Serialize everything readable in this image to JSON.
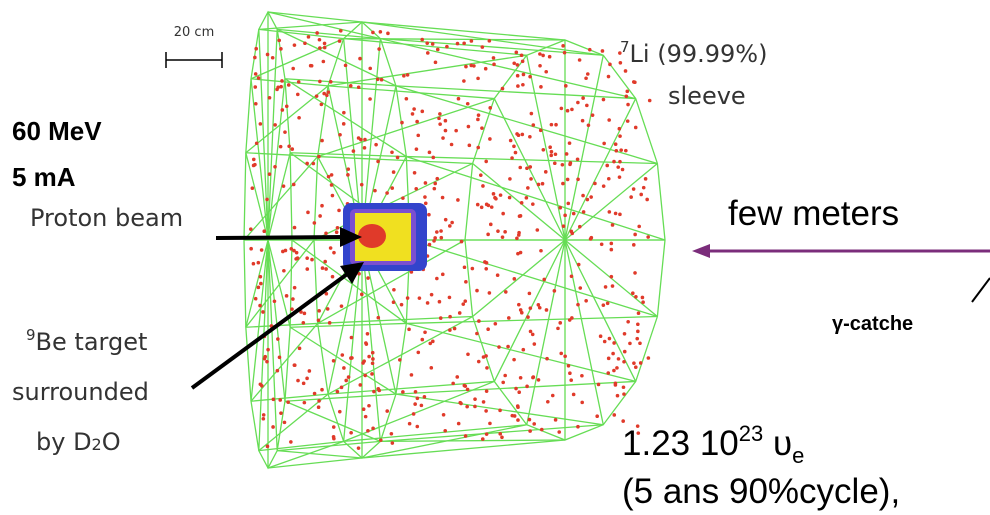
{
  "scale_bar": "20 cm",
  "beam": {
    "energy": "60 MeV",
    "current": "5 mA",
    "label": "Proton beam"
  },
  "sleeve": {
    "isotope_mass": "7",
    "material": "Li (99.99%)",
    "label": "sleeve"
  },
  "target": {
    "isotope_mass": "9",
    "material": "Be target",
    "line2": "surrounded",
    "line3_prefix": "by D",
    "line3_sub": "2",
    "line3_suffix": "O"
  },
  "distance": "few meters",
  "gamma_catcher": "γ-catche",
  "flux": {
    "mantissa": "1.23 10",
    "exponent": "23",
    "symbol": " υ",
    "subscript": "e",
    "line2": "(5 ans 90%cycle),"
  }
}
